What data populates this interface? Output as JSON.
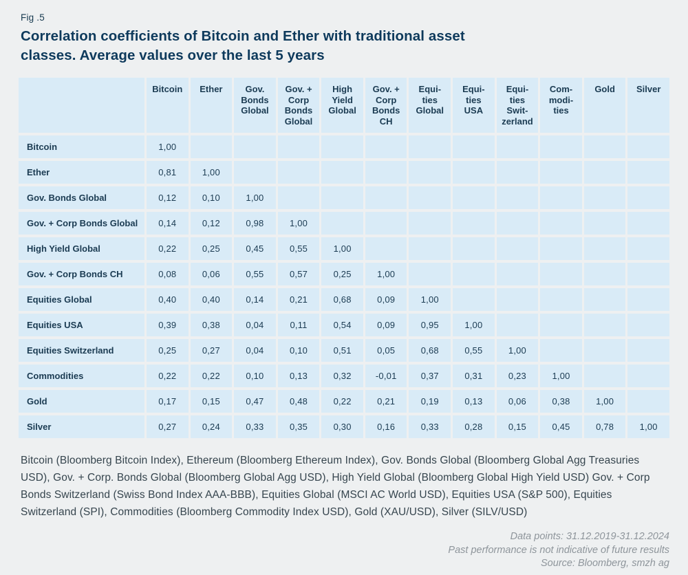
{
  "figure": {
    "label": "Fig .5",
    "title": "Correlation coefficients of Bitcoin and Ether with traditional asset\nclasses. Average values over the last 5 years"
  },
  "chart_data": {
    "type": "table",
    "subtype": "correlation-matrix",
    "title": "Correlation coefficients of Bitcoin and Ether with traditional asset classes. Average values over the last 5 years",
    "decimal_separator": ",",
    "columns": [
      "Bitcoin",
      "Ether",
      "Gov.\nBonds\nGlobal",
      "Gov. +\nCorp\nBonds\nGlobal",
      "High\nYield\nGlobal",
      "Gov. +\nCorp\nBonds\nCH",
      "Equi-\nties\nGlobal",
      "Equi-\nties\nUSA",
      "Equi-\nties\nSwit-\nzerland",
      "Com-\nmodi-\nties",
      "Gold",
      "Silver"
    ],
    "rows": [
      {
        "label": "Bitcoin",
        "values": [
          "1,00"
        ]
      },
      {
        "label": "Ether",
        "values": [
          "0,81",
          "1,00"
        ]
      },
      {
        "label": "Gov. Bonds Global",
        "values": [
          "0,12",
          "0,10",
          "1,00"
        ]
      },
      {
        "label": "Gov. + Corp Bonds Global",
        "values": [
          "0,14",
          "0,12",
          "0,98",
          "1,00"
        ]
      },
      {
        "label": "High Yield Global",
        "values": [
          "0,22",
          "0,25",
          "0,45",
          "0,55",
          "1,00"
        ]
      },
      {
        "label": "Gov. + Corp Bonds CH",
        "values": [
          "0,08",
          "0,06",
          "0,55",
          "0,57",
          "0,25",
          "1,00"
        ]
      },
      {
        "label": "Equities Global",
        "values": [
          "0,40",
          "0,40",
          "0,14",
          "0,21",
          "0,68",
          "0,09",
          "1,00"
        ]
      },
      {
        "label": "Equities USA",
        "values": [
          "0,39",
          "0,38",
          "0,04",
          "0,11",
          "0,54",
          "0,09",
          "0,95",
          "1,00"
        ]
      },
      {
        "label": "Equities Switzerland",
        "values": [
          "0,25",
          "0,27",
          "0,04",
          "0,10",
          "0,51",
          "0,05",
          "0,68",
          "0,55",
          "1,00"
        ]
      },
      {
        "label": "Commodities",
        "values": [
          "0,22",
          "0,22",
          "0,10",
          "0,13",
          "0,32",
          "-0,01",
          "0,37",
          "0,31",
          "0,23",
          "1,00"
        ]
      },
      {
        "label": "Gold",
        "values": [
          "0,17",
          "0,15",
          "0,47",
          "0,48",
          "0,22",
          "0,21",
          "0,19",
          "0,13",
          "0,06",
          "0,38",
          "1,00"
        ]
      },
      {
        "label": "Silver",
        "values": [
          "0,27",
          "0,24",
          "0,33",
          "0,35",
          "0,30",
          "0,16",
          "0,33",
          "0,28",
          "0,15",
          "0,45",
          "0,78",
          "1,00"
        ]
      }
    ]
  },
  "footnote": "Bitcoin (Bloomberg Bitcoin Index), Ethereum (Bloomberg Ethereum Index), Gov. Bonds Global (Bloomberg Global Agg Treasuries USD), Gov. + Corp. Bonds Global (Bloomberg Global Agg USD), High Yield Global (Bloomberg Global High Yield USD) Gov. + Corp Bonds Switzerland (Swiss Bond Index AAA-BBB), Equities Global (MSCI AC World USD), Equities USA (S&P 500), Equities Switzerland (SPI), Commodities (Bloomberg Commodity Index USD), Gold (XAU/USD), Silver (SILV/USD)",
  "source": {
    "data_points": "Data points: 31.12.2019-31.12.2024",
    "disclaimer": "Past performance is not indicative of future results",
    "source_line": "Source: Bloomberg, smzh ag"
  },
  "colors": {
    "page_background": "#eef0f1",
    "cell_background": "#d9ebf7",
    "text_navy": "#0e3a5c",
    "footnote_text": "#36454e",
    "source_text": "#8e959b"
  }
}
